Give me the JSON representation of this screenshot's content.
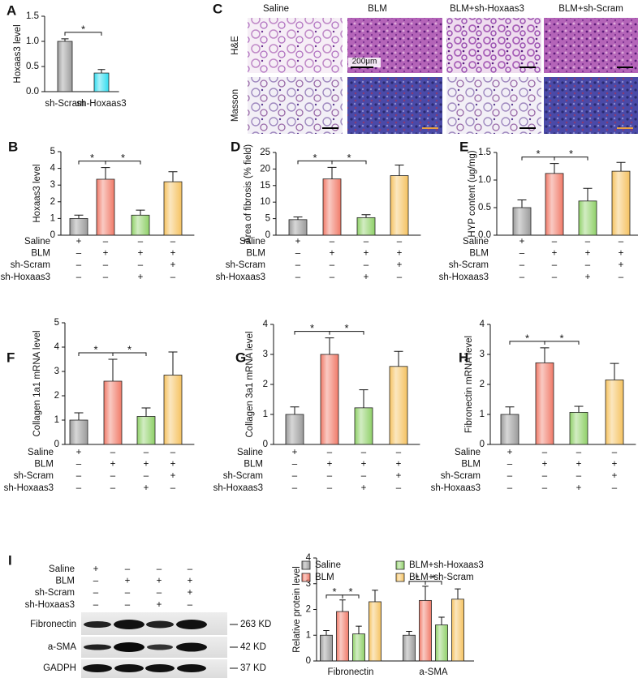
{
  "chart_data": [
    {
      "type": "bar",
      "panel": "A",
      "y_label": "Hoxaas3 level",
      "categories": [
        "sh-Scram",
        "sh-Hoxaas3"
      ],
      "values": [
        1.0,
        0.37
      ],
      "errors": [
        0.05,
        0.07
      ],
      "colors": [
        "#9a9a9a",
        "#30dcef"
      ],
      "ylim": [
        0,
        1.5
      ],
      "yticks": [
        {
          "value": 0,
          "label": "0.0"
        },
        0.5,
        {
          "value": 1,
          "label": "1.0"
        },
        1.5
      ],
      "annotations": [
        "*"
      ]
    },
    {
      "type": "bar",
      "panel": "B",
      "y_label": "Hoxaas3 level",
      "values": [
        1.0,
        3.35,
        1.2,
        3.2
      ],
      "errors": [
        0.2,
        0.7,
        0.3,
        0.6
      ],
      "colors": [
        "#9a9a9a",
        "#f07a68",
        "#8fd068",
        "#f5c260"
      ],
      "ylim": [
        0,
        5
      ],
      "yticks": [
        0,
        1,
        2,
        3,
        4,
        5
      ],
      "annotations": [
        "*",
        "*"
      ],
      "conditions": {
        "rows": [
          "Saline",
          "BLM",
          "sh-Scram",
          "sh-Hoxaas3"
        ],
        "cells": [
          [
            "+",
            "–",
            "–",
            "–"
          ],
          [
            "–",
            "+",
            "+",
            "+"
          ],
          [
            "–",
            "–",
            "–",
            "+"
          ],
          [
            "–",
            "–",
            "+",
            "–"
          ]
        ]
      }
    },
    {
      "type": "bar",
      "panel": "D",
      "y_label": "Area of fibrosis (% field)",
      "values": [
        4.7,
        17,
        5.3,
        18
      ],
      "errors": [
        0.8,
        3.5,
        0.9,
        3.2
      ],
      "colors": [
        "#9a9a9a",
        "#f07a68",
        "#8fd068",
        "#f5c260"
      ],
      "ylim": [
        0,
        25
      ],
      "yticks": [
        0,
        5,
        10,
        15,
        20,
        25
      ],
      "annotations": [
        "*",
        "*"
      ],
      "conditions": {
        "rows": [
          "Saline",
          "BLM",
          "sh-Scram",
          "sh-Hoxaas3"
        ],
        "cells": [
          [
            "+",
            "–",
            "–",
            "–"
          ],
          [
            "–",
            "+",
            "+",
            "+"
          ],
          [
            "–",
            "–",
            "–",
            "+"
          ],
          [
            "–",
            "–",
            "+",
            "–"
          ]
        ]
      }
    },
    {
      "type": "bar",
      "panel": "E",
      "y_label": "HYP content (ug/mg)",
      "values": [
        0.5,
        1.12,
        0.62,
        1.16
      ],
      "errors": [
        0.14,
        0.18,
        0.23,
        0.16
      ],
      "colors": [
        "#9a9a9a",
        "#f07a68",
        "#8fd068",
        "#f5c260"
      ],
      "ylim": [
        0,
        1.5
      ],
      "yticks": [
        {
          "value": 0,
          "label": "0.0"
        },
        0.5,
        {
          "value": 1,
          "label": "1.0"
        },
        1.5
      ],
      "annotations": [
        "*",
        "*"
      ],
      "conditions": {
        "rows": [
          "Saline",
          "BLM",
          "sh-Scram",
          "sh-Hoxaas3"
        ],
        "cells": [
          [
            "+",
            "–",
            "–",
            "–"
          ],
          [
            "–",
            "+",
            "+",
            "+"
          ],
          [
            "–",
            "–",
            "–",
            "+"
          ],
          [
            "–",
            "–",
            "+",
            "–"
          ]
        ]
      }
    },
    {
      "type": "bar",
      "panel": "F",
      "y_label": "Collagen 1a1 mRNA level",
      "values": [
        1.0,
        2.6,
        1.15,
        2.85
      ],
      "errors": [
        0.3,
        0.9,
        0.35,
        0.95
      ],
      "colors": [
        "#9a9a9a",
        "#f07a68",
        "#8fd068",
        "#f5c260"
      ],
      "ylim": [
        0,
        5
      ],
      "yticks": [
        0,
        1,
        2,
        3,
        4,
        5
      ],
      "annotations": [
        "*",
        "*"
      ],
      "conditions": {
        "rows": [
          "Saline",
          "BLM",
          "sh-Scram",
          "sh-Hoxaas3"
        ],
        "cells": [
          [
            "+",
            "–",
            "–",
            "–"
          ],
          [
            "–",
            "+",
            "+",
            "+"
          ],
          [
            "–",
            "–",
            "–",
            "+"
          ],
          [
            "–",
            "–",
            "+",
            "–"
          ]
        ]
      }
    },
    {
      "type": "bar",
      "panel": "G",
      "y_label": "Collagen 3a1 mRNA level",
      "values": [
        1.0,
        3.0,
        1.22,
        2.6
      ],
      "errors": [
        0.25,
        0.55,
        0.6,
        0.5
      ],
      "colors": [
        "#9a9a9a",
        "#f07a68",
        "#8fd068",
        "#f5c260"
      ],
      "ylim": [
        0,
        4
      ],
      "yticks": [
        0,
        1,
        2,
        3,
        4
      ],
      "annotations": [
        "*",
        "*"
      ],
      "conditions": {
        "rows": [
          "Saline",
          "BLM",
          "sh-Scram",
          "sh-Hoxaas3"
        ],
        "cells": [
          [
            "+",
            "–",
            "–",
            "–"
          ],
          [
            "–",
            "+",
            "+",
            "+"
          ],
          [
            "–",
            "–",
            "–",
            "+"
          ],
          [
            "–",
            "–",
            "+",
            "–"
          ]
        ]
      }
    },
    {
      "type": "bar",
      "panel": "H",
      "y_label": "Fibronectin mRNA level",
      "values": [
        1.0,
        2.72,
        1.07,
        2.15
      ],
      "errors": [
        0.25,
        0.5,
        0.2,
        0.55
      ],
      "colors": [
        "#9a9a9a",
        "#f07a68",
        "#8fd068",
        "#f5c260"
      ],
      "ylim": [
        0,
        4
      ],
      "yticks": [
        0,
        1,
        2,
        3,
        4
      ],
      "annotations": [
        "*",
        "*"
      ],
      "conditions": {
        "rows": [
          "Saline",
          "BLM",
          "sh-Scram",
          "sh-Hoxaas3"
        ],
        "cells": [
          [
            "+",
            "–",
            "–",
            "–"
          ],
          [
            "–",
            "+",
            "+",
            "+"
          ],
          [
            "–",
            "–",
            "–",
            "+"
          ],
          [
            "–",
            "–",
            "+",
            "–"
          ]
        ]
      }
    },
    {
      "type": "bar",
      "y_label": "Relative protein level",
      "categories": [
        "Fibronectin",
        "a-SMA"
      ],
      "series": [
        {
          "name": "Saline",
          "color": "#9a9a9a",
          "values": [
            1.0,
            1.0
          ],
          "errors": [
            0.18,
            0.15
          ]
        },
        {
          "name": "BLM",
          "color": "#f07a68",
          "values": [
            1.92,
            2.35
          ],
          "errors": [
            0.45,
            0.55
          ]
        },
        {
          "name": "BLM+sh-Hoxaas3",
          "color": "#8fd068",
          "values": [
            1.05,
            1.4
          ],
          "errors": [
            0.3,
            0.3
          ]
        },
        {
          "name": "BLM+sh-Scram",
          "color": "#f5c260",
          "values": [
            2.3,
            2.4
          ],
          "errors": [
            0.45,
            0.4
          ]
        }
      ],
      "ylim": [
        0,
        4
      ],
      "yticks": [
        0,
        1,
        2,
        3,
        4
      ],
      "annotations": [
        [
          "*",
          "*"
        ],
        [
          "*",
          "*"
        ]
      ],
      "legend": "top"
    }
  ],
  "histology": {
    "panel": "C",
    "columns": [
      "Saline",
      "BLM",
      "BLM+sh-Hoxaas3",
      "BLM+sh-Scram"
    ],
    "rows": [
      "H&E",
      "Masson"
    ],
    "scale_label": "200μm"
  },
  "western_blot": {
    "panel": "I",
    "conditions": {
      "rows": [
        "Saline",
        "BLM",
        "sh-Scram",
        "sh-Hoxaas3"
      ],
      "cells": [
        [
          "+",
          "–",
          "–",
          "–"
        ],
        [
          "–",
          "+",
          "+",
          "+"
        ],
        [
          "–",
          "–",
          "–",
          "+"
        ],
        [
          "–",
          "–",
          "+",
          "–"
        ]
      ]
    },
    "proteins": [
      "Fibronectin",
      "a-SMA",
      "GADPH"
    ],
    "sizes": [
      "263 KD",
      "42 KD",
      "37 KD"
    ]
  }
}
